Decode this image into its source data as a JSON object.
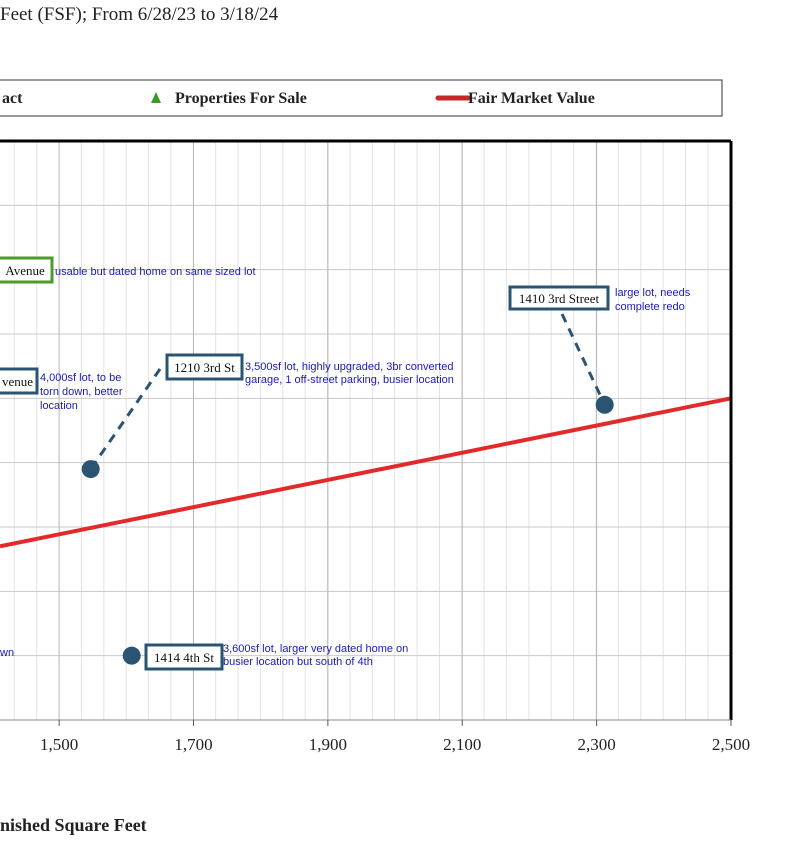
{
  "chart_data": {
    "type": "scatter",
    "title": "Feet (FSF); From 6/28/23 to 3/18/24",
    "xlabel": "nished Square Feet",
    "legend": {
      "placement": "top",
      "entries": [
        {
          "label": "act",
          "marker": "none"
        },
        {
          "label": "Properties For Sale",
          "marker": "triangle",
          "color": "#3a9a2a"
        },
        {
          "label": "Fair Market Value",
          "marker": "line",
          "color": "#c62828"
        }
      ]
    },
    "x_ticks": [
      "1,500",
      "1,700",
      "1,900",
      "2,100",
      "2,300",
      "2,500"
    ],
    "xlim": [
      1412,
      2500
    ],
    "ylim": [
      0,
      9
    ],
    "grid": true,
    "fair_market_value_line": {
      "x": [
        1412,
        2500
      ],
      "y": [
        2.7,
        5.0
      ]
    },
    "points": [
      {
        "x": 1547,
        "y": 3.9,
        "color": "#2b5472"
      },
      {
        "x": 2312,
        "y": 4.9,
        "color": "#2b5472"
      },
      {
        "x": 1608,
        "y": 1.0,
        "color": "#2b5472"
      }
    ],
    "annotations": [
      {
        "label": "Avenue",
        "box_color": "#4f9a2c",
        "note_lines": [
          "usable but dated home on same sized lot"
        ]
      },
      {
        "label": "1410 3rd Street",
        "box_color": "#2b5472",
        "note_lines": [
          "large lot, needs",
          "complete redo"
        ],
        "point": 1
      },
      {
        "label": "1210 3rd St",
        "box_color": "#2b5472",
        "note_lines": [
          "3,500sf lot, highly upgraded, 3br converted",
          "garage, 1 off-street parking, busier location"
        ],
        "point": 0
      },
      {
        "label": "venue",
        "box_color": "#2b5472",
        "note_lines": [
          "4,000sf lot, to be",
          "torn down, better",
          "location"
        ]
      },
      {
        "label": "1414 4th St",
        "box_color": "#2b5472",
        "note_lines": [
          "3,600sf lot, larger very dated home on",
          "busier location but south of 4th"
        ],
        "point": 2
      },
      {
        "label": "",
        "box_color": "",
        "note_lines": [
          "wn"
        ]
      }
    ]
  }
}
